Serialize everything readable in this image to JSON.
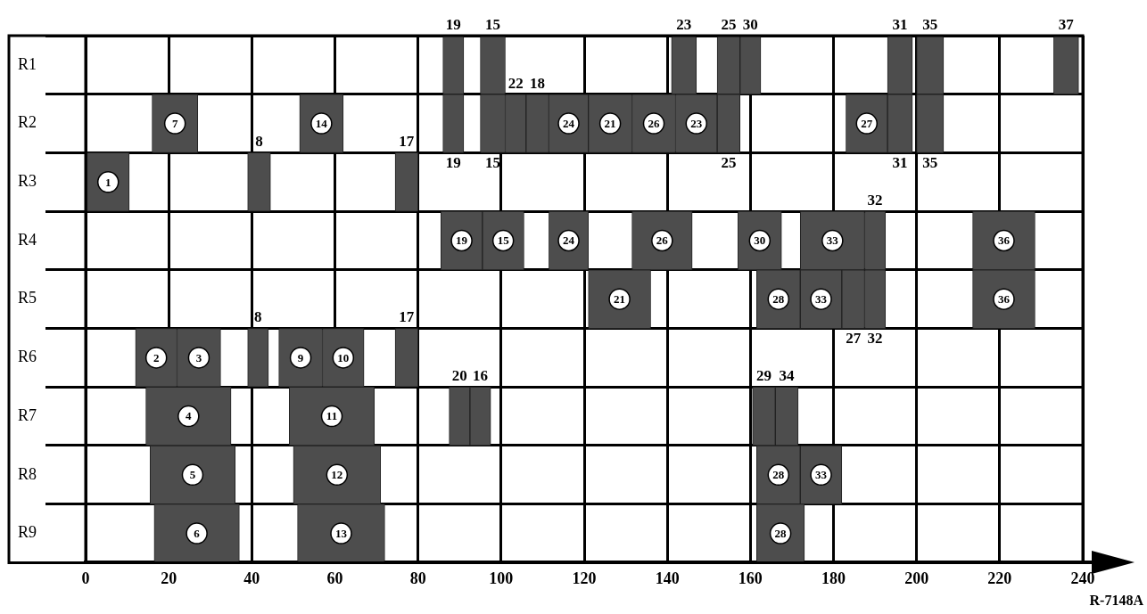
{
  "chart_data": {
    "type": "bar",
    "orientation": "horizontal",
    "categories": [
      "R1",
      "R2",
      "R3",
      "R4",
      "R5",
      "R6",
      "R7",
      "R8",
      "R9"
    ],
    "series": [
      {
        "name": "1",
        "color": "#4d4d4d",
        "base": [
          null,
          null,
          0,
          null,
          null,
          null,
          null,
          null,
          null
        ],
        "values": [
          null,
          null,
          10.5,
          null,
          null,
          null,
          null,
          null,
          null
        ]
      },
      {
        "name": "2",
        "color": "#4d4d4d",
        "base": [
          null,
          null,
          null,
          null,
          null,
          12,
          null,
          null,
          null
        ],
        "values": [
          null,
          null,
          null,
          null,
          null,
          10,
          null,
          null,
          null
        ]
      },
      {
        "name": "3",
        "color": "#4d4d4d",
        "base": [
          null,
          null,
          null,
          null,
          null,
          22,
          null,
          null,
          null
        ],
        "values": [
          null,
          null,
          null,
          null,
          null,
          10.5,
          null,
          null,
          null
        ]
      },
      {
        "name": "4",
        "color": "#4d4d4d",
        "base": [
          null,
          null,
          null,
          null,
          null,
          null,
          14.5,
          null,
          null
        ],
        "values": [
          null,
          null,
          null,
          null,
          null,
          null,
          20.5,
          null,
          null
        ]
      },
      {
        "name": "5",
        "color": "#4d4d4d",
        "base": [
          null,
          null,
          null,
          null,
          null,
          null,
          null,
          15.5,
          null
        ],
        "values": [
          null,
          null,
          null,
          null,
          null,
          null,
          null,
          20.5,
          null
        ]
      },
      {
        "name": "6",
        "color": "#4d4d4d",
        "base": [
          null,
          null,
          null,
          null,
          null,
          null,
          null,
          null,
          16.5
        ],
        "values": [
          null,
          null,
          null,
          null,
          null,
          null,
          null,
          null,
          20.5
        ]
      },
      {
        "name": "7",
        "color": "#4d4d4d",
        "base": [
          null,
          16,
          null,
          null,
          null,
          null,
          null,
          null,
          null
        ],
        "values": [
          null,
          11,
          null,
          null,
          null,
          null,
          null,
          null,
          null
        ]
      },
      {
        "name": "8",
        "color": "#4d4d4d",
        "base": [
          null,
          null,
          39,
          null,
          null,
          39,
          null,
          null,
          null
        ],
        "values": [
          null,
          null,
          5.5,
          null,
          null,
          5,
          null,
          null,
          null
        ]
      },
      {
        "name": "9",
        "color": "#4d4d4d",
        "base": [
          null,
          null,
          null,
          null,
          null,
          46.5,
          null,
          null,
          null
        ],
        "values": [
          null,
          null,
          null,
          null,
          null,
          10.5,
          null,
          null,
          null
        ]
      },
      {
        "name": "10",
        "color": "#4d4d4d",
        "base": [
          null,
          null,
          null,
          null,
          null,
          57,
          null,
          null,
          null
        ],
        "values": [
          null,
          null,
          null,
          null,
          null,
          10,
          null,
          null,
          null
        ]
      },
      {
        "name": "11",
        "color": "#4d4d4d",
        "base": [
          null,
          null,
          null,
          null,
          null,
          null,
          49,
          null,
          null
        ],
        "values": [
          null,
          null,
          null,
          null,
          null,
          null,
          20.5,
          null,
          null
        ]
      },
      {
        "name": "12",
        "color": "#4d4d4d",
        "base": [
          null,
          null,
          null,
          null,
          null,
          null,
          null,
          50,
          null
        ],
        "values": [
          null,
          null,
          null,
          null,
          null,
          null,
          null,
          21,
          null
        ]
      },
      {
        "name": "13",
        "color": "#4d4d4d",
        "base": [
          null,
          null,
          null,
          null,
          null,
          null,
          null,
          null,
          51
        ],
        "values": [
          null,
          null,
          null,
          null,
          null,
          null,
          null,
          null,
          21
        ]
      },
      {
        "name": "14",
        "color": "#4d4d4d",
        "base": [
          null,
          51.5,
          null,
          null,
          null,
          null,
          null,
          null,
          null
        ],
        "values": [
          null,
          10.5,
          null,
          null,
          null,
          null,
          null,
          null,
          null
        ]
      },
      {
        "name": "15",
        "color": "#4d4d4d",
        "base": [
          95,
          95,
          null,
          95.5,
          null,
          null,
          null,
          null,
          null
        ],
        "values": [
          6,
          6,
          null,
          10,
          null,
          null,
          null,
          null,
          null
        ]
      },
      {
        "name": "16",
        "color": "#4d4d4d",
        "base": [
          null,
          null,
          null,
          null,
          null,
          null,
          92.5,
          null,
          null
        ],
        "values": [
          null,
          null,
          null,
          null,
          null,
          null,
          5,
          null,
          null
        ]
      },
      {
        "name": "17",
        "color": "#4d4d4d",
        "base": [
          null,
          null,
          74.5,
          null,
          null,
          74.5,
          null,
          null,
          null
        ],
        "values": [
          null,
          null,
          5.5,
          null,
          null,
          5.5,
          null,
          null,
          null
        ]
      },
      {
        "name": "18",
        "color": "#4d4d4d",
        "base": [
          null,
          106,
          null,
          null,
          null,
          null,
          null,
          null,
          null
        ],
        "values": [
          null,
          5.5,
          null,
          null,
          null,
          null,
          null,
          null,
          null
        ]
      },
      {
        "name": "19",
        "color": "#4d4d4d",
        "base": [
          86,
          86,
          null,
          85.5,
          null,
          null,
          null,
          null,
          null
        ],
        "values": [
          5,
          5,
          null,
          10,
          null,
          null,
          null,
          null,
          null
        ]
      },
      {
        "name": "20",
        "color": "#4d4d4d",
        "base": [
          null,
          null,
          null,
          null,
          null,
          null,
          87.5,
          null,
          null
        ],
        "values": [
          null,
          null,
          null,
          null,
          null,
          null,
          5,
          null,
          null
        ]
      },
      {
        "name": "21",
        "color": "#4d4d4d",
        "base": [
          null,
          121,
          null,
          null,
          121,
          null,
          null,
          null,
          null
        ],
        "values": [
          null,
          10.5,
          null,
          null,
          15,
          null,
          null,
          null,
          null
        ]
      },
      {
        "name": "22",
        "color": "#4d4d4d",
        "base": [
          null,
          101,
          null,
          null,
          null,
          null,
          null,
          null,
          null
        ],
        "values": [
          null,
          5,
          null,
          null,
          null,
          null,
          null,
          null,
          null
        ]
      },
      {
        "name": "23",
        "color": "#4d4d4d",
        "base": [
          141,
          142,
          null,
          null,
          null,
          null,
          null,
          null,
          null
        ],
        "values": [
          6,
          10,
          null,
          null,
          null,
          null,
          null,
          null,
          null
        ]
      },
      {
        "name": "24",
        "color": "#4d4d4d",
        "base": [
          null,
          111.5,
          null,
          111.5,
          null,
          null,
          null,
          null,
          null
        ],
        "values": [
          null,
          9.5,
          null,
          9.5,
          null,
          null,
          null,
          null,
          null
        ]
      },
      {
        "name": "25",
        "color": "#4d4d4d",
        "base": [
          152,
          152,
          null,
          null,
          null,
          null,
          null,
          null,
          null
        ],
        "values": [
          5.5,
          5.5,
          null,
          null,
          null,
          null,
          null,
          null,
          null
        ]
      },
      {
        "name": "26",
        "color": "#4d4d4d",
        "base": [
          null,
          131.5,
          null,
          131.5,
          null,
          null,
          null,
          null,
          null
        ],
        "values": [
          null,
          10.5,
          null,
          14.5,
          null,
          null,
          null,
          null,
          null
        ]
      },
      {
        "name": "27",
        "color": "#4d4d4d",
        "base": [
          null,
          183,
          null,
          null,
          182,
          null,
          null,
          null,
          null
        ],
        "values": [
          null,
          10,
          null,
          null,
          5.5,
          null,
          null,
          null,
          null
        ]
      },
      {
        "name": "28",
        "color": "#4d4d4d",
        "base": [
          null,
          null,
          null,
          null,
          161.5,
          null,
          null,
          161.5,
          161.5
        ],
        "values": [
          null,
          null,
          null,
          null,
          10.5,
          null,
          null,
          10.5,
          11.5
        ]
      },
      {
        "name": "29",
        "color": "#4d4d4d",
        "base": [
          null,
          null,
          null,
          null,
          null,
          null,
          160.5,
          null,
          null
        ],
        "values": [
          null,
          null,
          null,
          null,
          null,
          null,
          5.5,
          null,
          null
        ]
      },
      {
        "name": "30",
        "color": "#4d4d4d",
        "base": [
          157.5,
          null,
          null,
          157,
          null,
          null,
          null,
          null,
          null
        ],
        "values": [
          5,
          null,
          null,
          10.5,
          null,
          null,
          null,
          null,
          null
        ]
      },
      {
        "name": "31",
        "color": "#4d4d4d",
        "base": [
          193,
          193,
          null,
          null,
          null,
          null,
          null,
          null,
          null
        ],
        "values": [
          6,
          6,
          null,
          null,
          null,
          null,
          null,
          null,
          null
        ]
      },
      {
        "name": "32",
        "color": "#4d4d4d",
        "base": [
          null,
          null,
          null,
          187.5,
          187.5,
          null,
          null,
          null,
          null
        ],
        "values": [
          null,
          null,
          null,
          5,
          5,
          null,
          null,
          null,
          null
        ]
      },
      {
        "name": "33",
        "color": "#4d4d4d",
        "base": [
          null,
          null,
          null,
          172,
          172,
          null,
          null,
          172,
          null
        ],
        "values": [
          null,
          null,
          null,
          15.5,
          10,
          null,
          null,
          10,
          null
        ]
      },
      {
        "name": "34",
        "color": "#4d4d4d",
        "base": [
          null,
          null,
          null,
          null,
          null,
          null,
          166,
          null,
          null
        ],
        "values": [
          null,
          null,
          null,
          null,
          null,
          null,
          5.5,
          null,
          null
        ]
      },
      {
        "name": "35",
        "color": "#4d4d4d",
        "base": [
          200,
          200,
          null,
          null,
          null,
          null,
          null,
          null,
          null
        ],
        "values": [
          6.5,
          6.5,
          null,
          null,
          null,
          null,
          null,
          null,
          null
        ]
      },
      {
        "name": "36",
        "color": "#4d4d4d",
        "base": [
          null,
          null,
          null,
          213.5,
          213.5,
          null,
          null,
          null,
          null
        ],
        "values": [
          null,
          null,
          null,
          15,
          15,
          null,
          null,
          null,
          null
        ]
      },
      {
        "name": "37",
        "color": "#4d4d4d",
        "base": [
          233,
          null,
          null,
          null,
          null,
          null,
          null,
          null,
          null
        ],
        "values": [
          6,
          null,
          null,
          null,
          null,
          null,
          null,
          null,
          null
        ]
      }
    ],
    "xlim": [
      0,
      240
    ],
    "xticks": [
      0,
      20,
      40,
      60,
      80,
      100,
      120,
      140,
      160,
      180,
      200,
      220,
      240
    ],
    "grid": true,
    "annotations": [
      "R-7148A"
    ]
  }
}
